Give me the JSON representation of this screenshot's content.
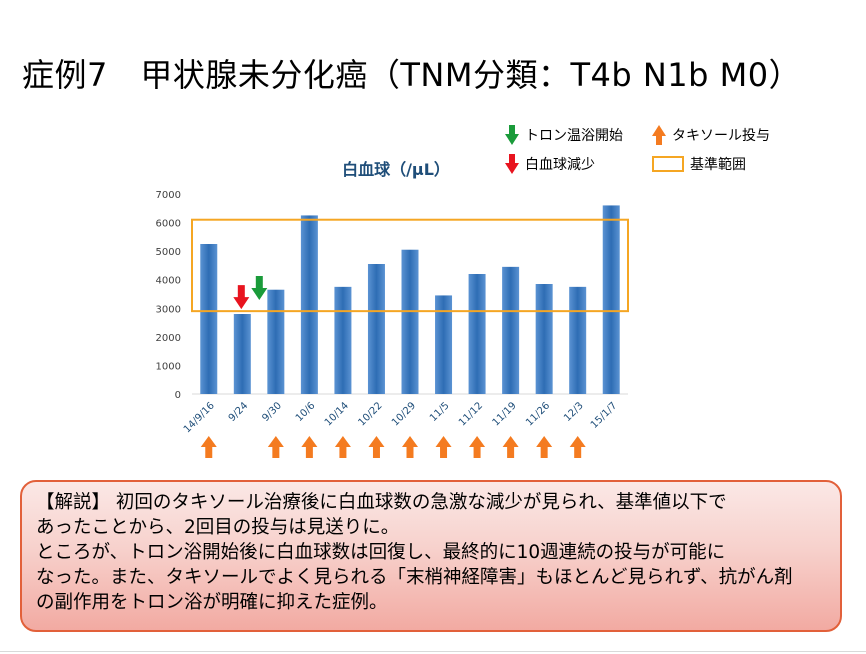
{
  "page": {
    "title": "症例7　甲状腺未分化癌（TNM分類：T4b N1b M0）"
  },
  "legend": {
    "onset": "トロン温浴開始",
    "taxol": "タキソール投与",
    "decrease": "白血球減少",
    "range": "基準範囲"
  },
  "colors": {
    "bar": "#2e6db4",
    "bar_light": "#5b93d3",
    "range_box": "#f5a623",
    "arrow_green": "#1a9b3a",
    "arrow_red": "#e8141f",
    "arrow_orange": "#f47b20",
    "chart_title": "#1f4e79"
  },
  "chart_data": {
    "type": "bar",
    "title": "白血球（/μL）",
    "categories": [
      "14/9/16",
      "9/24",
      "9/30",
      "10/6",
      "10/14",
      "10/22",
      "10/29",
      "11/5",
      "11/12",
      "11/19",
      "11/26",
      "12/3",
      "15/1/7"
    ],
    "values": [
      5250,
      2800,
      3650,
      6250,
      3750,
      4550,
      5050,
      3450,
      4200,
      4450,
      3850,
      3750,
      6600
    ],
    "yticks": [
      0,
      1000,
      2000,
      3000,
      4000,
      5000,
      6000,
      7000
    ],
    "ylim": [
      0,
      7000
    ],
    "reference_range": [
      2900,
      6100
    ],
    "grid": false,
    "markers": {
      "decrease_at": "9/24",
      "onset_at": "9/24",
      "taxol_at": [
        "14/9/16",
        "9/30",
        "10/6",
        "10/14",
        "10/22",
        "10/29",
        "11/5",
        "11/12",
        "11/19",
        "11/26",
        "12/3"
      ]
    }
  },
  "explanation": {
    "lines": [
      "【解説】 初回のタキソール治療後に白血球数の急激な減少が見られ、基準値以下で",
      "あったことから、2回目の投与は見送りに。",
      "ところが、トロン浴開始後に白血球数は回復し、最終的に10週連続の投与が可能に",
      "なった。また、タキソールでよく見られる「末梢神経障害」もほとんど見られず、抗がん剤",
      "の副作用をトロン浴が明確に抑えた症例。"
    ]
  }
}
